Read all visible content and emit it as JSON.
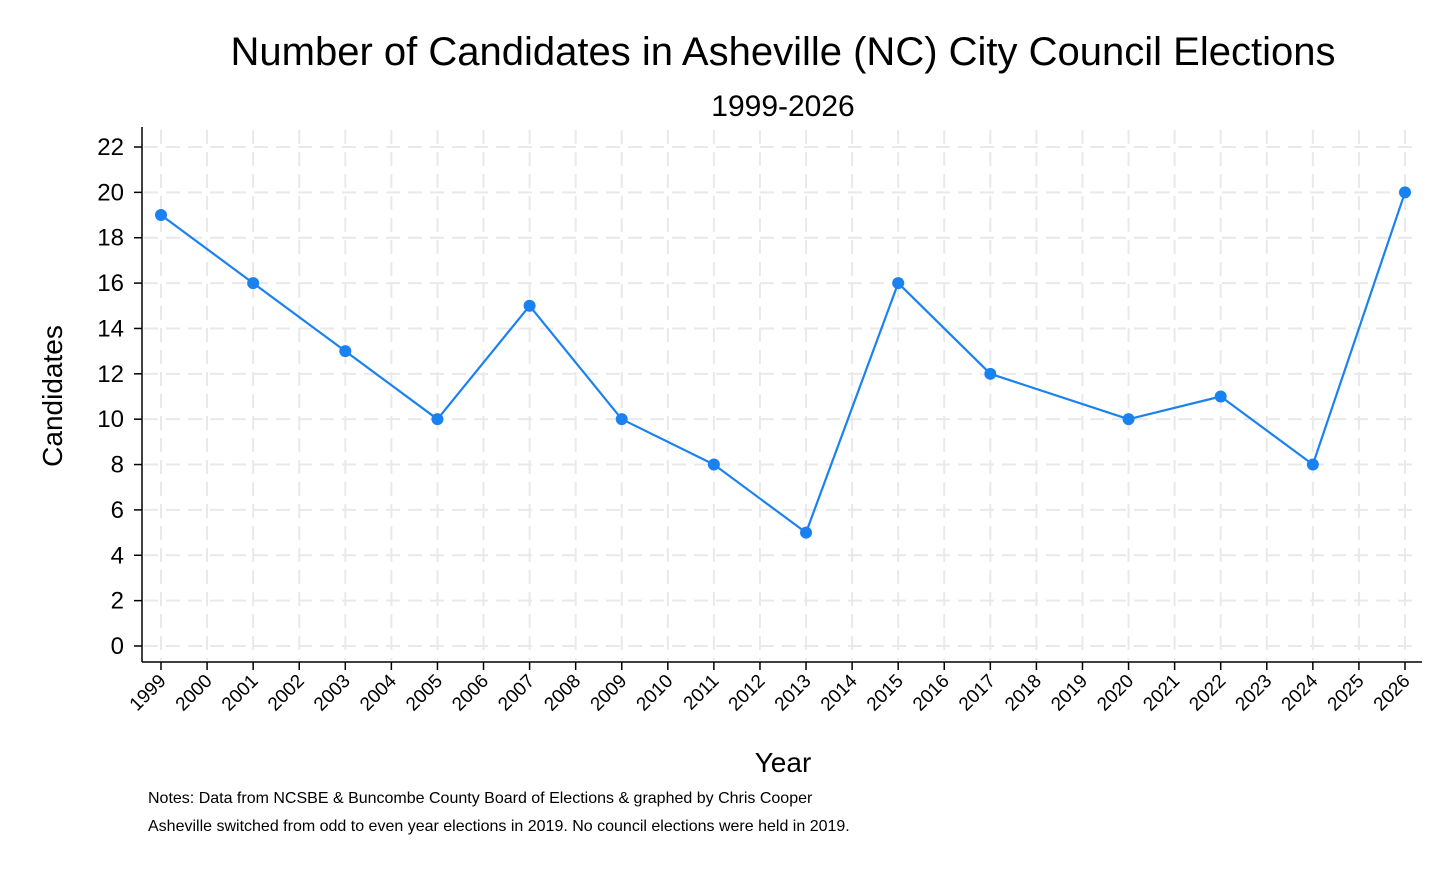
{
  "chart_data": {
    "type": "line",
    "title": "Number of Candidates in Asheville (NC) City Council Elections",
    "subtitle": "1999-2026",
    "xlabel": "Year",
    "ylabel": "Candidates",
    "xlim": [
      1999,
      2026
    ],
    "ylim": [
      0,
      22
    ],
    "y_ticks": [
      0,
      2,
      4,
      6,
      8,
      10,
      12,
      14,
      16,
      18,
      20,
      22
    ],
    "x_ticks": [
      1999,
      2000,
      2001,
      2002,
      2003,
      2004,
      2005,
      2006,
      2007,
      2008,
      2009,
      2010,
      2011,
      2012,
      2013,
      2014,
      2015,
      2016,
      2017,
      2018,
      2019,
      2020,
      2021,
      2022,
      2023,
      2024,
      2025,
      2026
    ],
    "grid": true,
    "series": [
      {
        "name": "Candidates",
        "color": "#1a82f0",
        "x": [
          1999,
          2001,
          2003,
          2005,
          2007,
          2009,
          2011,
          2013,
          2015,
          2017,
          2020,
          2022,
          2024,
          2026
        ],
        "values": [
          19,
          16,
          13,
          10,
          15,
          10,
          8,
          5,
          16,
          12,
          10,
          11,
          8,
          20
        ]
      }
    ],
    "notes": [
      "Notes: Data from NCSBE & Buncombe County Board of Elections & graphed by Chris Cooper",
      "Asheville switched from odd to even year elections in 2019. No council elections were held in 2019."
    ]
  }
}
